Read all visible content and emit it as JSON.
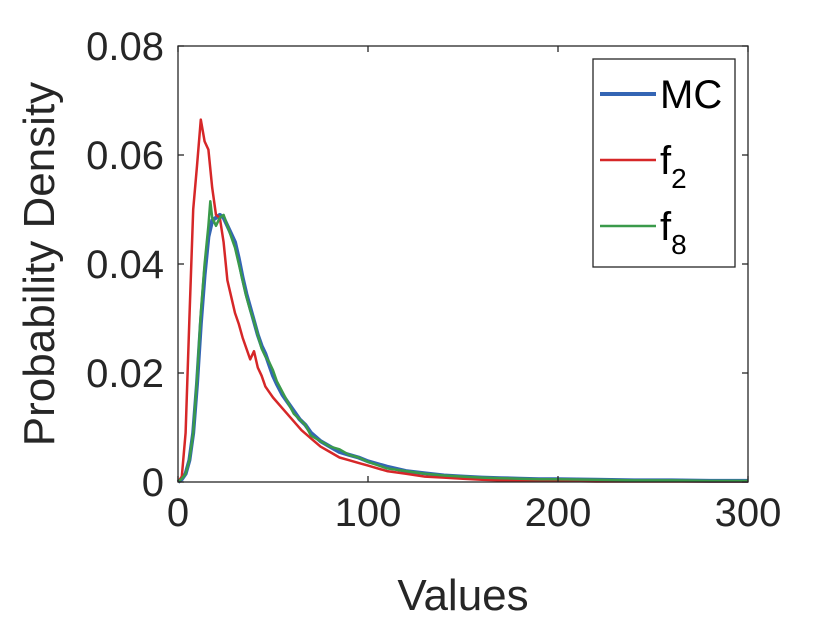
{
  "chart_data": {
    "type": "line",
    "title": "",
    "xlabel": "Values",
    "ylabel": "Probability Density",
    "xlim": [
      0,
      300
    ],
    "ylim": [
      0,
      0.08
    ],
    "xticks": [
      0,
      100,
      200,
      300
    ],
    "xtick_labels": [
      "0",
      "100",
      "200",
      "300"
    ],
    "yticks": [
      0,
      0.02,
      0.04,
      0.06,
      0.08
    ],
    "ytick_labels": [
      "0",
      "0.02",
      "0.04",
      "0.06",
      "0.08"
    ],
    "grid": false,
    "legend_position": "top-right",
    "series": [
      {
        "name": "MC",
        "legend_main": "MC",
        "legend_sub": "",
        "color": "#3465b4",
        "width": 4,
        "x": [
          0,
          2,
          4,
          6,
          8,
          10,
          12,
          14,
          16,
          18,
          20,
          22,
          24,
          26,
          28,
          30,
          32,
          34,
          36,
          38,
          40,
          42,
          44,
          46,
          48,
          50,
          52,
          55,
          58,
          61,
          64,
          67,
          70,
          75,
          80,
          85,
          90,
          95,
          100,
          110,
          120,
          130,
          140,
          150,
          160,
          170,
          180,
          190,
          200,
          220,
          240,
          260,
          280,
          300
        ],
        "y": [
          0,
          0.0005,
          0.0015,
          0.004,
          0.009,
          0.018,
          0.029,
          0.038,
          0.045,
          0.048,
          0.0485,
          0.049,
          0.0485,
          0.047,
          0.0455,
          0.044,
          0.041,
          0.0375,
          0.0345,
          0.032,
          0.0295,
          0.027,
          0.025,
          0.0235,
          0.0215,
          0.0195,
          0.018,
          0.016,
          0.0145,
          0.013,
          0.0115,
          0.0105,
          0.009,
          0.0075,
          0.0065,
          0.0055,
          0.005,
          0.0045,
          0.0038,
          0.0028,
          0.002,
          0.0016,
          0.0012,
          0.001,
          0.0008,
          0.0007,
          0.0006,
          0.0005,
          0.0005,
          0.0004,
          0.0003,
          0.0003,
          0.0002,
          0.0002
        ]
      },
      {
        "name": "f2",
        "legend_main": "f",
        "legend_sub": "2",
        "color": "#d62728",
        "width": 2.5,
        "x": [
          0,
          2,
          4,
          6,
          8,
          10,
          12,
          14,
          16,
          18,
          20,
          22,
          24,
          26,
          28,
          30,
          32,
          34,
          36,
          38,
          40,
          42,
          44,
          46,
          48,
          50,
          55,
          60,
          65,
          70,
          75,
          80,
          85,
          90,
          95,
          100,
          110,
          120,
          130,
          140,
          150,
          160,
          170,
          180,
          200,
          220,
          240,
          260,
          280,
          300
        ],
        "y": [
          0,
          0.001,
          0.009,
          0.03,
          0.05,
          0.058,
          0.0665,
          0.0625,
          0.061,
          0.054,
          0.049,
          0.0485,
          0.044,
          0.037,
          0.034,
          0.031,
          0.029,
          0.0265,
          0.0245,
          0.0225,
          0.024,
          0.021,
          0.0195,
          0.0175,
          0.0165,
          0.0155,
          0.0135,
          0.0115,
          0.0095,
          0.008,
          0.0065,
          0.0055,
          0.0045,
          0.004,
          0.0035,
          0.003,
          0.002,
          0.0015,
          0.001,
          0.0008,
          0.0006,
          0.0004,
          0.0003,
          0.0002,
          0.0002,
          0.0001,
          0.0001,
          0.0001,
          0.0001,
          0.0001
        ]
      },
      {
        "name": "f8",
        "legend_main": "f",
        "legend_sub": "8",
        "color": "#3a9a4a",
        "width": 2.5,
        "x": [
          0,
          2,
          4,
          6,
          8,
          10,
          12,
          14,
          16,
          17,
          18,
          20,
          22,
          24,
          26,
          28,
          30,
          32,
          34,
          36,
          38,
          40,
          42,
          44,
          46,
          48,
          50,
          52,
          55,
          58,
          61,
          64,
          67,
          70,
          75,
          80,
          85,
          90,
          95,
          100,
          110,
          120,
          130,
          140,
          150,
          160,
          170,
          180,
          190,
          200,
          220,
          240,
          260,
          280,
          300
        ],
        "y": [
          0,
          0.0006,
          0.0015,
          0.004,
          0.009,
          0.019,
          0.031,
          0.04,
          0.047,
          0.0515,
          0.0485,
          0.047,
          0.0485,
          0.049,
          0.047,
          0.045,
          0.043,
          0.04,
          0.037,
          0.034,
          0.0315,
          0.0295,
          0.027,
          0.0245,
          0.023,
          0.022,
          0.0205,
          0.0185,
          0.0165,
          0.0145,
          0.0125,
          0.0115,
          0.0105,
          0.0085,
          0.0075,
          0.0065,
          0.006,
          0.005,
          0.0045,
          0.0037,
          0.0025,
          0.002,
          0.0015,
          0.0012,
          0.001,
          0.0008,
          0.0007,
          0.0006,
          0.0005,
          0.0005,
          0.0004,
          0.0003,
          0.0003,
          0.0002,
          0.0002
        ]
      }
    ]
  }
}
